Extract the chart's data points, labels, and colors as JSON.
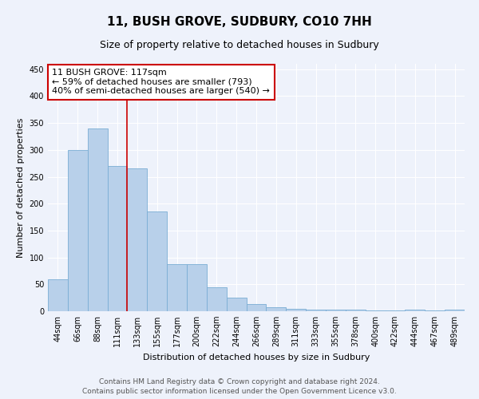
{
  "title": "11, BUSH GROVE, SUDBURY, CO10 7HH",
  "subtitle": "Size of property relative to detached houses in Sudbury",
  "xlabel": "Distribution of detached houses by size in Sudbury",
  "ylabel": "Number of detached properties",
  "bar_color": "#b8d0ea",
  "bar_edge_color": "#7aadd4",
  "categories": [
    "44sqm",
    "66sqm",
    "88sqm",
    "111sqm",
    "133sqm",
    "155sqm",
    "177sqm",
    "200sqm",
    "222sqm",
    "244sqm",
    "266sqm",
    "289sqm",
    "311sqm",
    "333sqm",
    "355sqm",
    "378sqm",
    "400sqm",
    "422sqm",
    "444sqm",
    "467sqm",
    "489sqm"
  ],
  "values": [
    60,
    300,
    340,
    270,
    265,
    185,
    88,
    88,
    45,
    25,
    14,
    8,
    4,
    3,
    3,
    3,
    1,
    1,
    3,
    1,
    3
  ],
  "vline_x": 3.5,
  "vline_color": "#cc0000",
  "annotation_line1": "11 BUSH GROVE: 117sqm",
  "annotation_line2": "← 59% of detached houses are smaller (793)",
  "annotation_line3": "40% of semi-detached houses are larger (540) →",
  "annotation_box_color": "#ffffff",
  "annotation_box_edge_color": "#cc0000",
  "ylim": [
    0,
    460
  ],
  "yticks": [
    0,
    50,
    100,
    150,
    200,
    250,
    300,
    350,
    400,
    450
  ],
  "footer_line1": "Contains HM Land Registry data © Crown copyright and database right 2024.",
  "footer_line2": "Contains public sector information licensed under the Open Government Licence v3.0.",
  "background_color": "#eef2fb",
  "grid_color": "#ffffff",
  "title_fontsize": 11,
  "subtitle_fontsize": 9,
  "axis_label_fontsize": 8,
  "tick_fontsize": 7,
  "annotation_fontsize": 8,
  "footer_fontsize": 6.5
}
